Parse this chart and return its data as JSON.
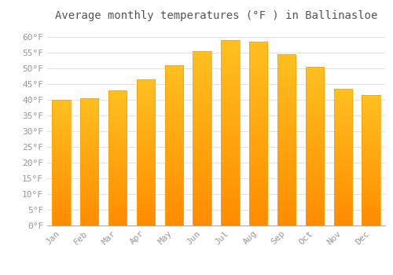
{
  "title": "Average monthly temperatures (°F ) in Ballinasloe",
  "months": [
    "Jan",
    "Feb",
    "Mar",
    "Apr",
    "May",
    "Jun",
    "Jul",
    "Aug",
    "Sep",
    "Oct",
    "Nov",
    "Dec"
  ],
  "values": [
    40.0,
    40.5,
    43.0,
    46.5,
    51.0,
    55.5,
    59.0,
    58.5,
    54.5,
    50.5,
    43.5,
    41.5
  ],
  "bar_color_top": "#FFB300",
  "bar_color_bottom": "#FF8C00",
  "background_color": "#FFFFFF",
  "grid_color": "#DDDDDD",
  "ylim": [
    0,
    63
  ],
  "yticks": [
    0,
    5,
    10,
    15,
    20,
    25,
    30,
    35,
    40,
    45,
    50,
    55,
    60
  ],
  "title_fontsize": 10,
  "tick_fontsize": 8,
  "tick_label_color": "#999999",
  "title_color": "#555555",
  "bar_width": 0.65
}
